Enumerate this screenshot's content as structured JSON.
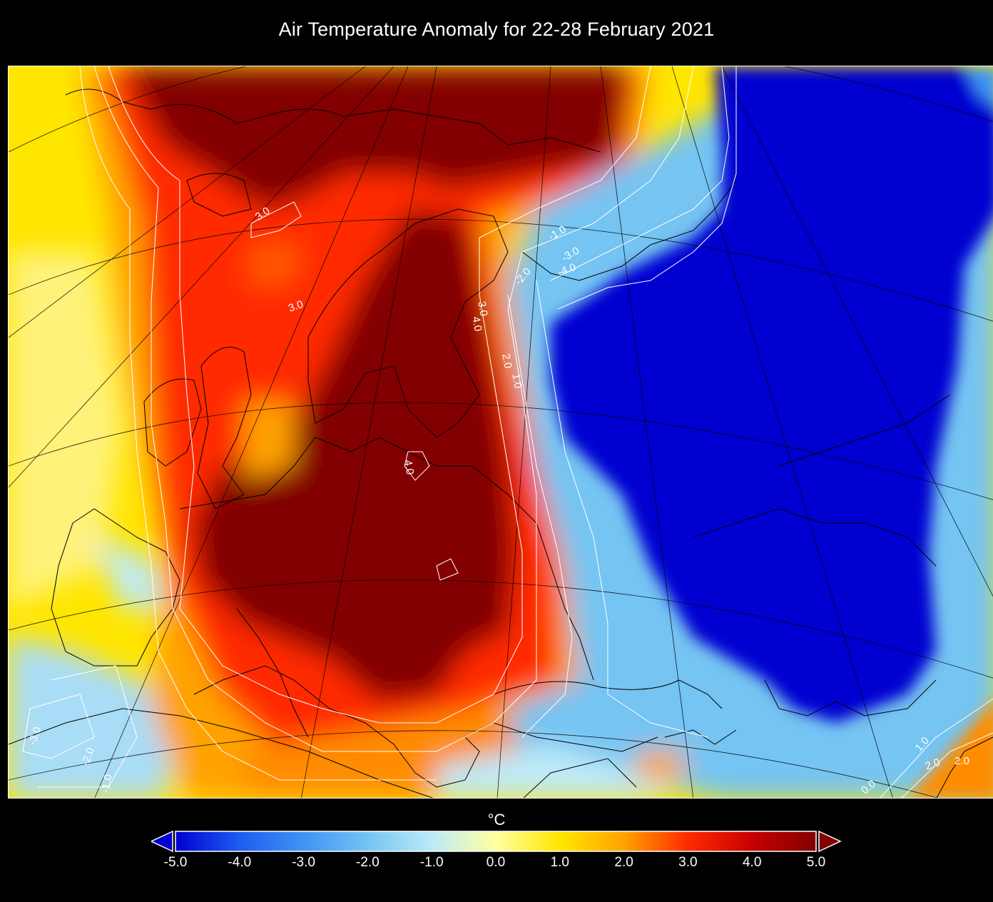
{
  "title": "Air Temperature Anomaly for 22-28 February 2021",
  "colorbar": {
    "unit": "°C",
    "ticks": [
      "-5.0",
      "-4.0",
      "-3.0",
      "-2.0",
      "-1.0",
      "0.0",
      "1.0",
      "2.0",
      "3.0",
      "4.0",
      "5.0"
    ],
    "min": -5.0,
    "max": 5.0,
    "colors": [
      "#0000d0",
      "#1e5cf0",
      "#3f94f5",
      "#74c4f2",
      "#bdeaf8",
      "#ffffa0",
      "#ffe600",
      "#ffa200",
      "#ff2a00",
      "#c80000",
      "#820000"
    ]
  },
  "contour_labels": [
    "3.0",
    "3.0",
    "3.0",
    "4.0",
    "4.0",
    "2.0",
    "1.0",
    "-1.0",
    "-2.0",
    "-3.0",
    "-4.0",
    "-3.0",
    "-2.0",
    "-1.0",
    "1.0",
    "2.0",
    "2.0",
    "0.0"
  ]
}
